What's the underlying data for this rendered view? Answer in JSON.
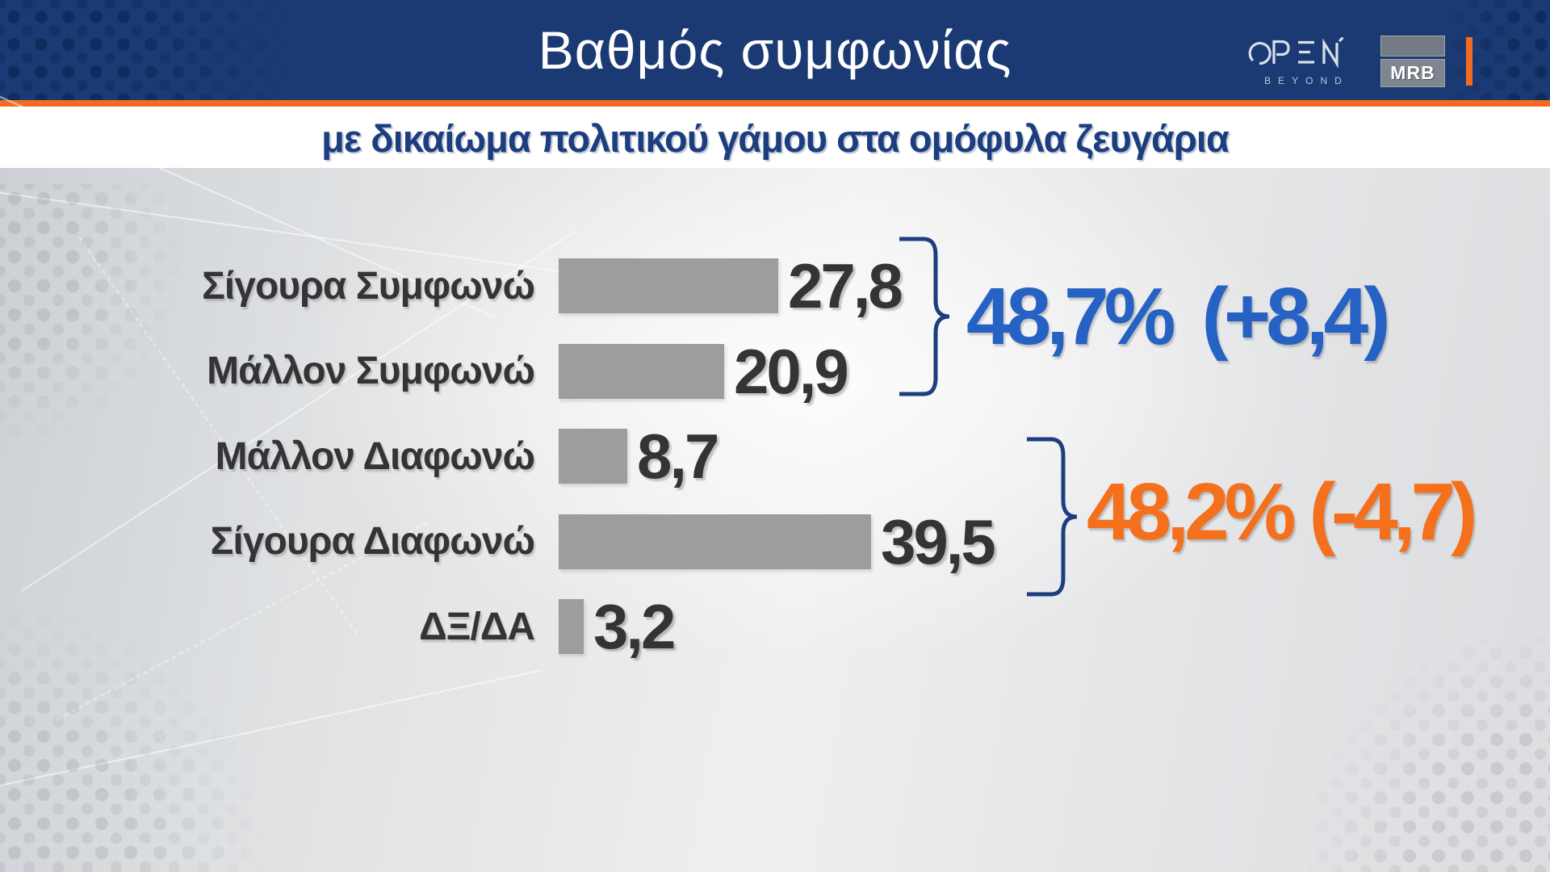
{
  "header": {
    "title": "Βαθμός συμφωνίας",
    "open_logo": {
      "name": "OPEN",
      "sub": "BEYOND"
    },
    "mrb_label": "MRB"
  },
  "subtitle": {
    "text": "με δικαίωμα πολιτικού γάμου στα ομόφυλα ζευγάρια"
  },
  "chart_data": {
    "type": "bar",
    "orientation": "horizontal",
    "title": "Βαθμός συμφωνίας",
    "subtitle": "με δικαίωμα πολιτικού γάμου στα ομόφυλα ζευγάρια",
    "categories": [
      "Σίγουρα Συμφωνώ",
      "Μάλλον Συμφωνώ",
      "Μάλλον Διαφωνώ",
      "Σίγουρα Διαφωνώ",
      "ΔΞ/ΔΑ"
    ],
    "values": [
      27.8,
      20.9,
      8.7,
      39.5,
      3.2
    ],
    "value_labels": [
      "27,8",
      "20,9",
      "8,7",
      "39,5",
      "3,2"
    ],
    "xlabel": "",
    "ylabel": "",
    "xlim": [
      0,
      100
    ],
    "grid": false,
    "bar_color": "#9d9d9d",
    "groups": [
      {
        "label": "48,7%",
        "delta": "(+8,4)",
        "color": "#2562c4",
        "rows": [
          0,
          1
        ]
      },
      {
        "label": "48,2%",
        "delta": "(-4,7)",
        "color": "#f4701d",
        "rows": [
          2,
          3
        ]
      }
    ]
  },
  "colors": {
    "header_bg": "#1b3a73",
    "accent_orange": "#f26b21",
    "subtitle_blue": "#1c3d7e",
    "bar_gray": "#9d9d9d",
    "value_dark": "#343437",
    "agree_blue": "#2562c4",
    "disagree_orange": "#f4701d"
  }
}
